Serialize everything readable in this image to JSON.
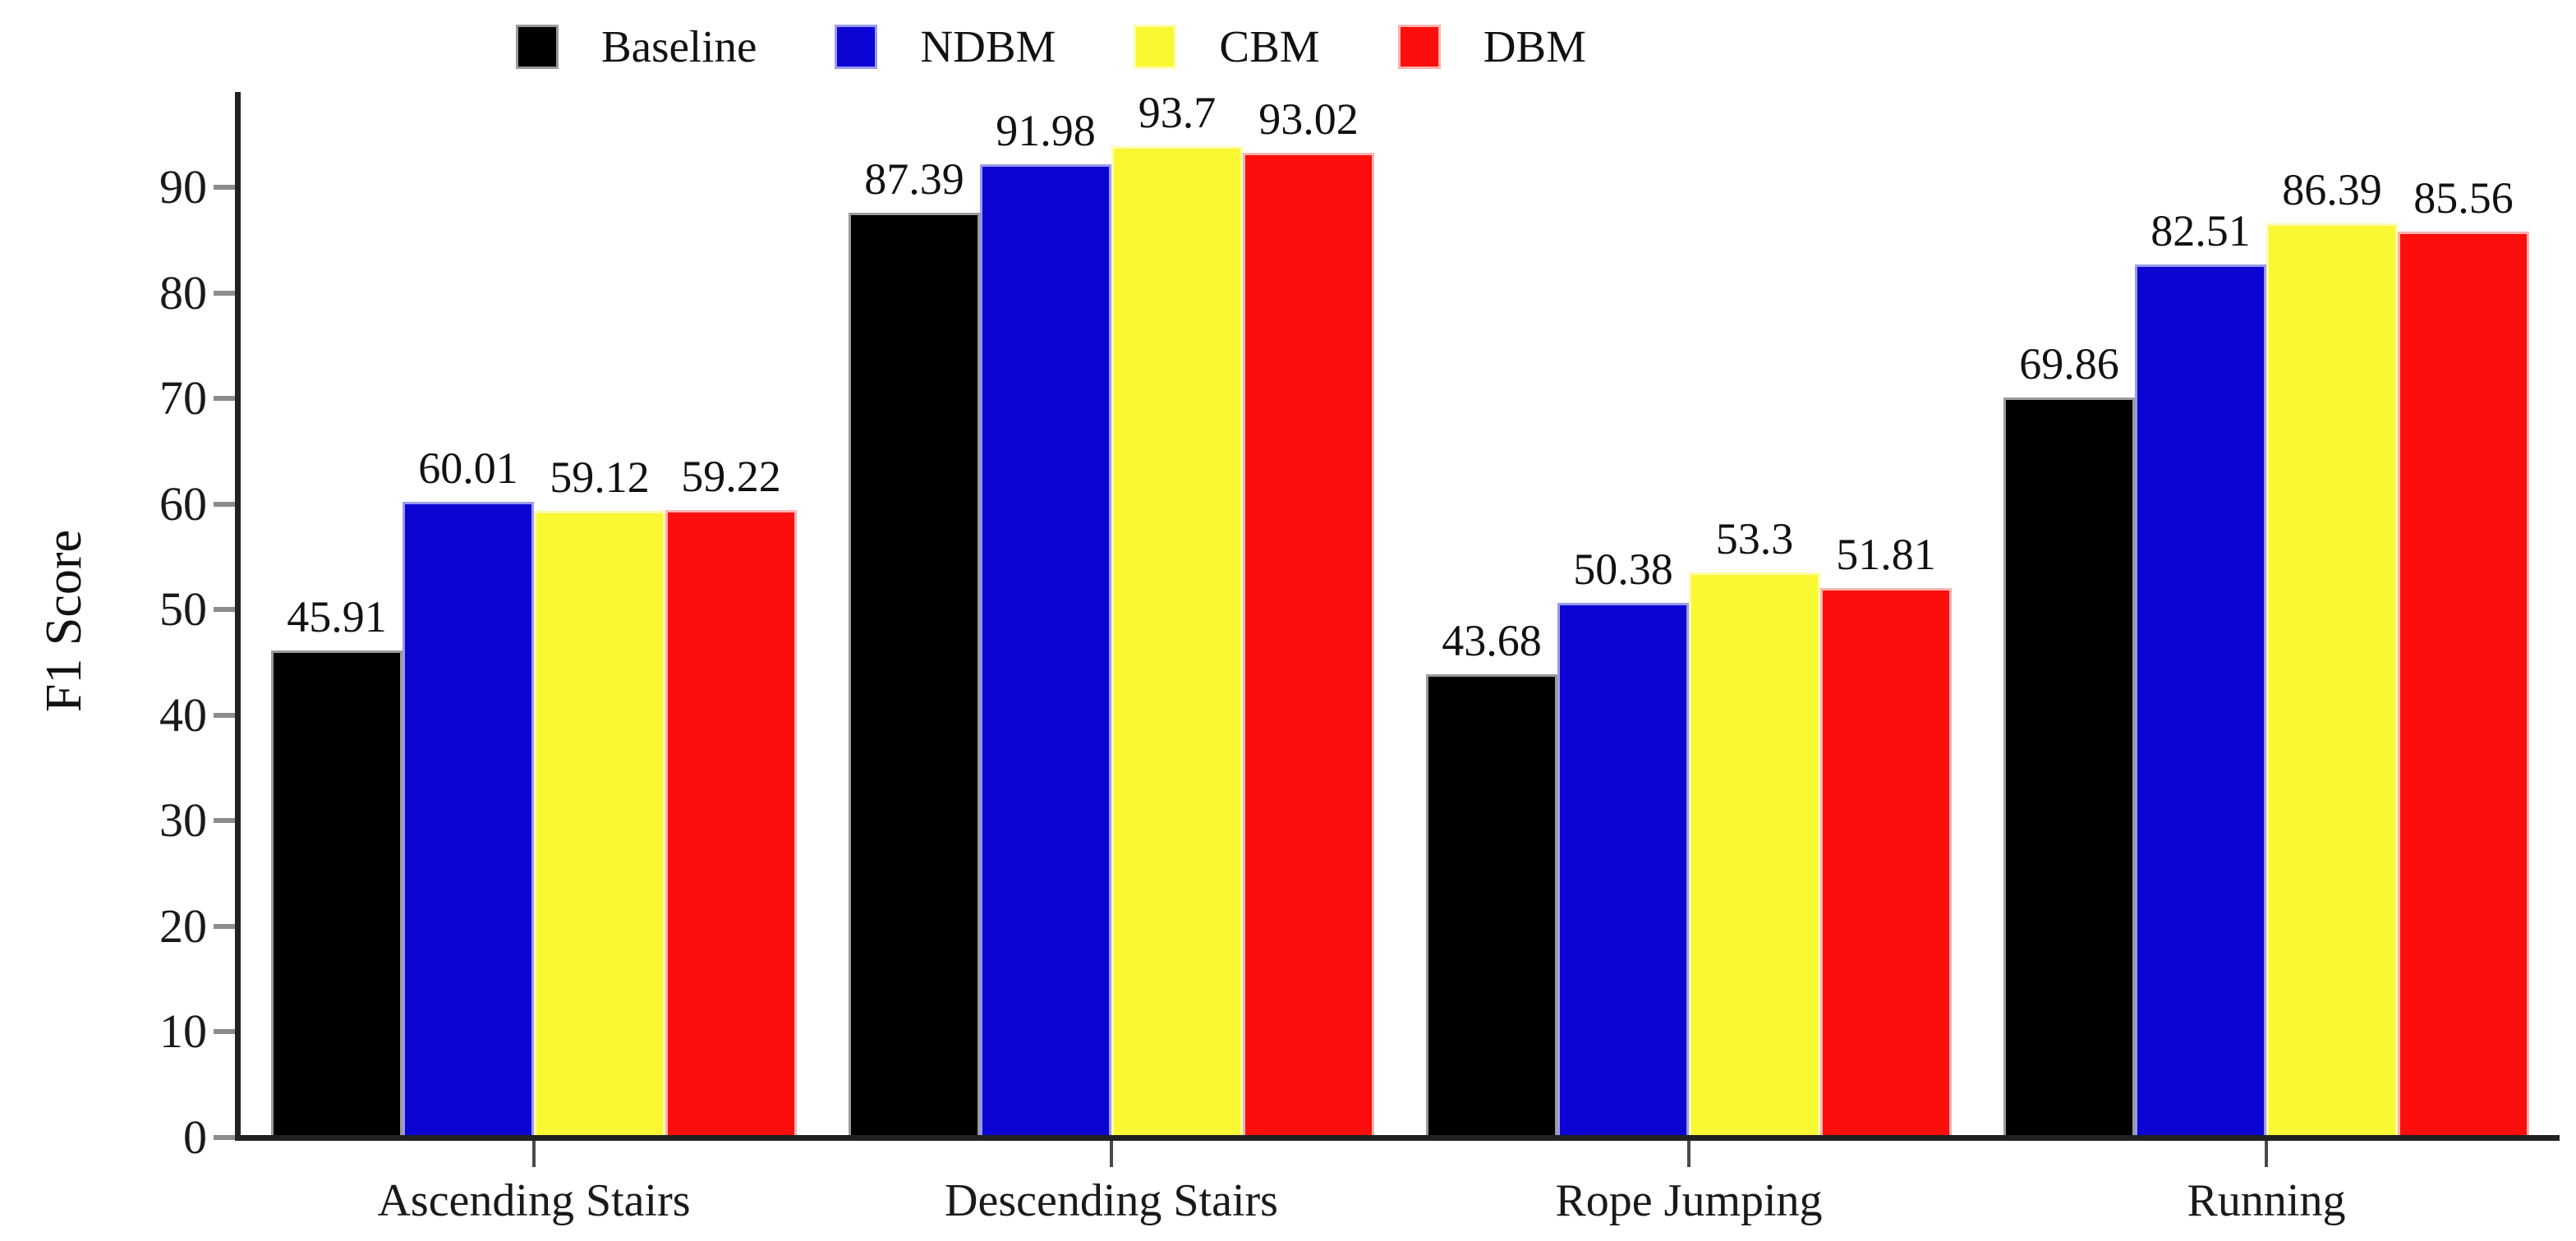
{
  "chart_data": {
    "type": "bar",
    "title": "",
    "xlabel": "",
    "ylabel": "F1 Score",
    "categories": [
      "Ascending Stairs",
      "Descending Stairs",
      "Rope Jumping",
      "Running"
    ],
    "series": [
      {
        "name": "Baseline",
        "color": "#000000",
        "edge_color": "#9a9a9a",
        "values": [
          45.91,
          87.39,
          43.68,
          69.86
        ]
      },
      {
        "name": "NDBM",
        "color": "#0b04d2",
        "edge_color": "#9b9bec",
        "values": [
          60.01,
          91.98,
          50.38,
          82.51
        ]
      },
      {
        "name": "CBM",
        "color": "#faf832",
        "edge_color": "#fdfcae",
        "values": [
          59.12,
          93.7,
          53.3,
          86.39
        ]
      },
      {
        "name": "DBM",
        "color": "#fb0e0c",
        "edge_color": "#fdb3b0",
        "values": [
          59.22,
          93.02,
          51.81,
          85.56
        ]
      }
    ],
    "ylim": [
      0,
      98.5
    ],
    "yticks": [
      0,
      10,
      20,
      30,
      40,
      50,
      60,
      70,
      80,
      90
    ],
    "grid": false,
    "legend_position": "top",
    "value_labels": true,
    "axis_color": "#222222",
    "background_color": "#ffffff"
  }
}
